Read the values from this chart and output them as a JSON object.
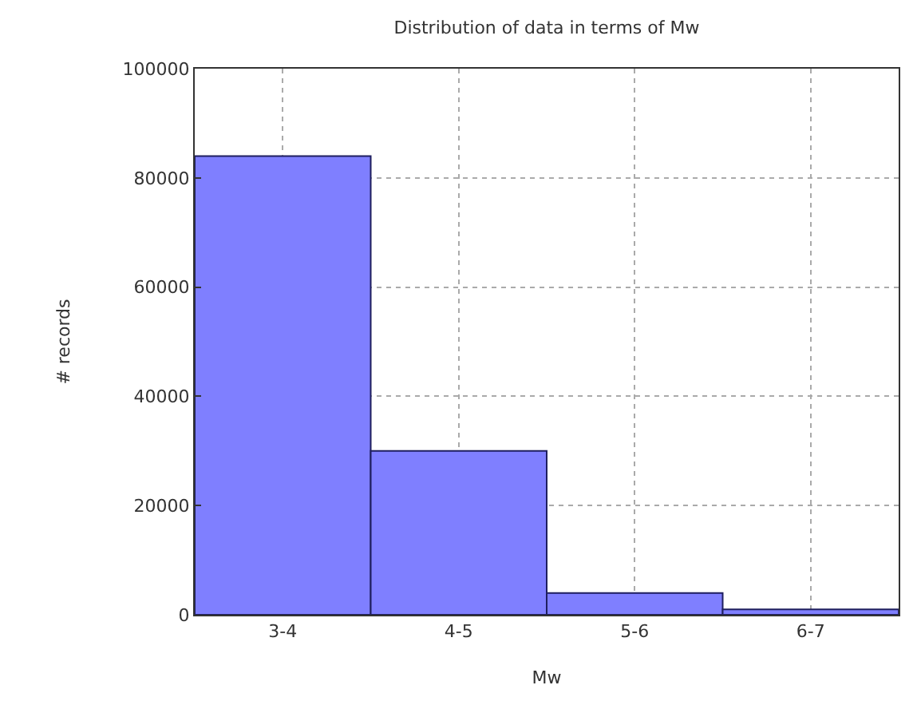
{
  "chart_data": {
    "type": "bar",
    "title": "Distribution of data in terms of Mw",
    "xlabel": "Mw",
    "ylabel": "# records",
    "categories": [
      "3-4",
      "4-5",
      "5-6",
      "6-7"
    ],
    "values": [
      84000,
      30000,
      4000,
      1000
    ],
    "color": "#7f7fff",
    "ylim": [
      0,
      100000
    ],
    "yticks": [
      0,
      20000,
      40000,
      60000,
      80000,
      100000
    ],
    "grid": true
  }
}
